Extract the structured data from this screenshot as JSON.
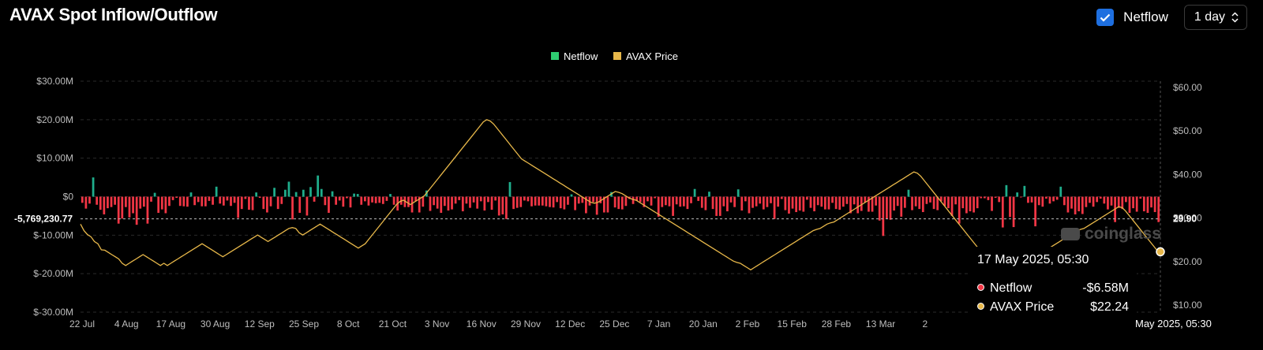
{
  "header": {
    "title": "AVAX Spot Inflow/Outflow",
    "netflow_checkbox_label": "Netflow",
    "period_value": "1 day"
  },
  "tooltip": {
    "title": "17 May 2025, 05:30",
    "rows": [
      {
        "name": "Netflow",
        "value": "-$6.58M",
        "color": "#f23645"
      },
      {
        "name": "AVAX Price",
        "value": "$22.24",
        "color": "#e8b84a"
      }
    ]
  },
  "watermark": "coinglass",
  "crosshair": {
    "left_label": "-5,769,230.77",
    "right_label": "29.90",
    "date_label": "May 2025, 05:30"
  },
  "colors": {
    "positive": "#1fae8c",
    "negative": "#f23645",
    "price": "#e8b84a",
    "legend_netflow": "#2ecc71",
    "legend_price": "#e8b84a"
  },
  "chart_data": {
    "type": "bar",
    "legend": [
      "Netflow",
      "AVAX Price"
    ],
    "x_tick_labels": [
      "22 Jul",
      "4 Aug",
      "17 Aug",
      "30 Aug",
      "12 Sep",
      "25 Sep",
      "8 Oct",
      "21 Oct",
      "3 Nov",
      "16 Nov",
      "29 Nov",
      "12 Dec",
      "25 Dec",
      "7 Jan",
      "20 Jan",
      "2 Feb",
      "15 Feb",
      "28 Feb",
      "13 Mar",
      "2"
    ],
    "y_left_ticks": [
      "$30.00M",
      "$20.00M",
      "$10.00M",
      "$0",
      "$-10.00M",
      "$-20.00M",
      "$-30.00M"
    ],
    "y_left_range": [
      -30,
      30
    ],
    "y_right_ticks": [
      "$60.00",
      "$50.00",
      "$40.00",
      "$30.00",
      "$20.00",
      "$10.00"
    ],
    "y_right_range": [
      10,
      60
    ],
    "series": [
      {
        "name": "Netflow",
        "unit": "$M",
        "values": [
          -1.6,
          -3.1,
          -1.8,
          5,
          -2.1,
          -3.4,
          -4.6,
          -3,
          -2.7,
          -2.1,
          -7,
          -5.7,
          -2.7,
          -5.4,
          -4.3,
          -7.3,
          -3.1,
          -2.6,
          -7,
          -1.3,
          1,
          -4.2,
          -3.3,
          -4.3,
          -2.4,
          -0.9,
          -0.3,
          -2.4,
          -2.5,
          -2.6,
          1.1,
          -2.2,
          -1.4,
          -2.5,
          -2.5,
          -1.1,
          -2.1,
          2.6,
          -1.8,
          -2.3,
          -1,
          -2.4,
          -1.6,
          -5.5,
          -3.2,
          -0.6,
          -3.4,
          -3.5,
          1.1,
          -0.3,
          -3.2,
          -4.1,
          -2.5,
          2.3,
          -3.2,
          -1.9,
          1.8,
          3.9,
          -5.9,
          1.2,
          -4.2,
          1.8,
          -4.9,
          2.5,
          -1.3,
          5.5,
          2,
          -2.2,
          -4.2,
          1.4,
          -2.1,
          -1,
          -2.6,
          -0.4,
          -2.8,
          0.8,
          0.7,
          -2.1,
          -1.2,
          -2.3,
          -1.5,
          -1.7,
          -1.6,
          -1.9,
          -1.1,
          0.7,
          -2.1,
          -3.6,
          -2.1,
          -2.7,
          -2.7,
          -4.1,
          -1.2,
          -4.1,
          -2.6,
          1.6,
          -3.7,
          -2.2,
          -3.1,
          -4.2,
          -2.4,
          -3.6,
          -3.3,
          -1.8,
          -0.9,
          -3.8,
          -1.8,
          -2.9,
          -1.5,
          -3.1,
          -1.2,
          -3.6,
          -1.4,
          -3.4,
          -1,
          -4.9,
          -4.6,
          -5.8,
          3.8,
          -3.2,
          -2.9,
          -2.7,
          -1,
          -1.2,
          -2.5,
          -2.3,
          -2.3,
          -2.3,
          -2.5,
          -2.7,
          -2.8,
          -1.4,
          -3,
          -3.3,
          -2.1,
          0.6,
          -3.5,
          -1.8,
          -1.6,
          -4.3,
          -2.3,
          -1.4,
          -4.7,
          -1.7,
          -4.1,
          -4.1,
          1.2,
          -2.8,
          -3.2,
          -3.3,
          -2.4,
          -0.6,
          -1.9,
          -1.1,
          -1.4,
          -2.7,
          -1.2,
          -2.3,
          -0.4,
          -5.2,
          -2.7,
          -2.2,
          -2.5,
          -5,
          -2,
          -2.6,
          -2.5,
          -3.2,
          -1.7,
          2,
          -1.1,
          -2.9,
          -3.5,
          1.3,
          -3.2,
          -5,
          -5,
          -2.5,
          -3.8,
          -1.5,
          -2.7,
          1.9,
          -3.6,
          -1.2,
          -4.3,
          -2.9,
          -2.5,
          -1.8,
          -3.3,
          -2.7,
          -1.7,
          -5.8,
          -2.6,
          -0.6,
          -3.5,
          -4.4,
          -3.1,
          -4,
          -3.6,
          -3.9,
          -0.8,
          -2.9,
          -3.8,
          -2.2,
          -2.6,
          -3.3,
          -3.3,
          -1.6,
          -3.2,
          -3.4,
          -2.6,
          -1.9,
          -4.3,
          -2,
          -4.3,
          -3.7,
          -1.5,
          -3.9,
          -3.9,
          -2.3,
          -6.2,
          -10.2,
          -5.8,
          -6,
          -3.6,
          -2.4,
          -5.2,
          -2.9,
          1.8,
          -3.5,
          -2.5,
          -3.2,
          -4,
          -1.9,
          -1.5,
          -3.2,
          -3.5,
          -1.2,
          -2.4,
          -3,
          -5,
          -2,
          -7,
          -3,
          -4.3,
          -3.8,
          -4.1,
          -3,
          -0.4,
          -0.4,
          -0.9,
          -3.7,
          -0.3,
          -1.4,
          -8,
          3,
          -5.3,
          -7.9,
          1.1,
          -0.2,
          2.8,
          -1.6,
          -1.5,
          -7.7,
          -2.2,
          -2.6,
          -0.5,
          -1.8,
          -1.2,
          -0.8,
          2.6,
          -2.2,
          -4.1,
          -3.1,
          -4.6,
          -3.8,
          -4.5,
          -2.7,
          -1.6,
          -2.6,
          -1.4,
          -0.5,
          -1.8,
          -3.3,
          -2.3,
          -6.6,
          -2.9,
          -3.2,
          -1.4,
          -4.2,
          -3,
          -3.9,
          -0.5,
          -3.8,
          -4.2,
          -2.8,
          -4,
          -6.6
        ],
        "note": "approximate daily netflow"
      },
      {
        "name": "AVAX Price",
        "unit": "USD",
        "values": [
          28.6,
          27.1,
          26.2,
          25.7,
          24.6,
          24.1,
          22.7,
          22.6,
          22.1,
          21.6,
          21.1,
          20.6,
          19.6,
          19.1,
          19.6,
          20.1,
          20.6,
          21.1,
          21.6,
          21.1,
          20.6,
          20.1,
          19.6,
          19.1,
          19.6,
          19.1,
          19.6,
          20.1,
          20.6,
          21.1,
          21.6,
          22.1,
          22.6,
          23.1,
          23.6,
          24.1,
          23.6,
          23.1,
          22.6,
          22.1,
          21.6,
          21.1,
          21.6,
          22.1,
          22.6,
          23.1,
          23.6,
          24.1,
          24.6,
          25.1,
          25.6,
          26.1,
          25.6,
          25.1,
          24.6,
          25.1,
          25.6,
          26.1,
          26.6,
          27.1,
          27.6,
          27.8,
          27.6,
          26.6,
          26.1,
          26.6,
          27.1,
          27.6,
          28.1,
          28.6,
          28.1,
          27.6,
          27.1,
          26.6,
          26.1,
          25.6,
          25.1,
          24.6,
          24.1,
          23.6,
          23.1,
          23.6,
          24.1,
          25.1,
          26.1,
          27.1,
          28.1,
          29.1,
          30.1,
          31.1,
          32.1,
          33.1,
          33.8,
          34.1,
          33.6,
          33.1,
          33.6,
          34.1,
          34.6,
          35.1,
          36.1,
          37.1,
          38.1,
          39.1,
          40.1,
          41.1,
          42.1,
          43.1,
          44.1,
          45.1,
          46.1,
          47.1,
          48.1,
          49.1,
          50.1,
          51.1,
          52.1,
          52.6,
          52.3,
          51.6,
          50.6,
          49.6,
          48.6,
          47.6,
          46.6,
          45.6,
          44.6,
          43.6,
          43.1,
          42.6,
          42.1,
          41.6,
          41.1,
          40.6,
          40.1,
          39.6,
          39.1,
          38.6,
          38.1,
          37.6,
          37.1,
          36.6,
          36.1,
          35.6,
          35.1,
          34.6,
          34.1,
          33.6,
          33.4,
          33.6,
          34.1,
          34.6,
          35.1,
          35.6,
          36.1,
          35.9,
          35.6,
          35.1,
          34.6,
          34.3,
          34.1,
          33.6,
          33.1,
          32.6,
          32.1,
          31.6,
          31.1,
          30.6,
          30.1,
          29.6,
          29.1,
          28.6,
          28.1,
          27.6,
          27.1,
          26.6,
          26.1,
          25.6,
          25.1,
          24.6,
          24.1,
          23.6,
          23.1,
          22.6,
          22.1,
          21.6,
          21.1,
          20.6,
          20.1,
          19.8,
          19.6,
          19.1,
          18.6,
          18.1,
          18.6,
          19.1,
          19.6,
          20.1,
          20.6,
          21.1,
          21.6,
          22.1,
          22.6,
          23.1,
          23.6,
          24.1,
          24.6,
          25.1,
          25.6,
          26.1,
          26.6,
          27.1,
          27.4,
          27.6,
          28.1,
          28.6,
          28.9,
          29.1,
          29.6,
          30.1,
          30.6,
          31.1,
          31.6,
          32.1,
          32.6,
          33.1,
          33.6,
          34.1,
          34.6,
          35.1,
          35.6,
          36.1,
          36.6,
          37.1,
          37.6,
          38.1,
          38.6,
          39.1,
          39.6,
          40.1,
          40.6,
          40.3,
          39.6,
          38.6,
          37.6,
          36.6,
          35.6,
          34.6,
          33.6,
          32.6,
          31.6,
          30.6,
          29.6,
          28.6,
          27.6,
          26.6,
          25.6,
          24.6,
          23.6,
          22.6,
          22.1,
          21.6,
          21.1,
          20.6,
          20.3,
          20.1,
          19.6,
          19.1,
          18.6,
          18.9,
          19.1,
          19.6,
          20.1,
          20.6,
          21.1,
          21.3,
          21.6,
          22.1,
          22.6,
          23.1,
          23.6,
          24.1,
          24.6,
          25.1,
          25.6,
          26.1,
          26.6,
          27.1,
          27.4,
          27.6,
          28.1,
          28.6,
          29.1,
          29.6,
          30.1,
          30.6,
          31.1,
          31.6,
          32.1,
          32.6,
          32.4,
          31.6,
          30.6,
          29.6,
          28.6,
          27.6,
          26.6,
          25.6,
          24.6,
          23.6,
          22.6,
          22.24
        ],
        "note": "approximate daily price"
      }
    ],
    "grid": true
  }
}
